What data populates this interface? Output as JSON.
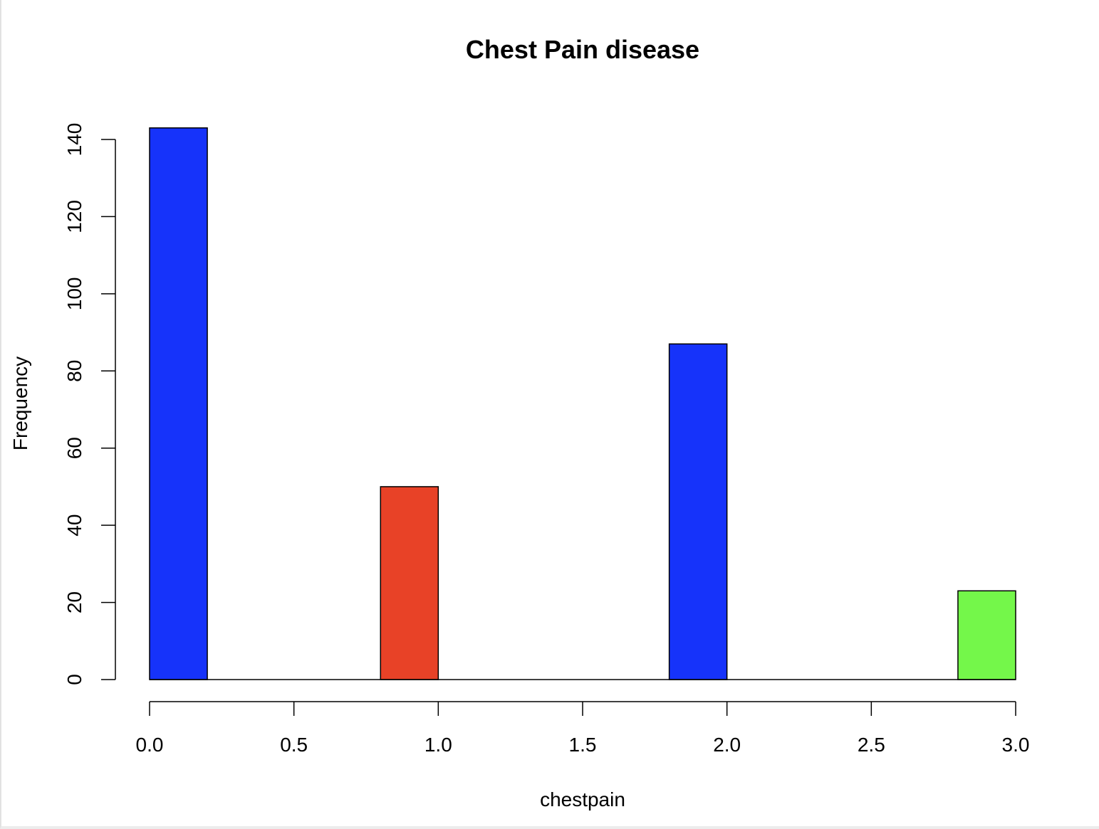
{
  "chart_data": {
    "type": "bar",
    "title": "Chest Pain disease",
    "xlabel": "chestpain",
    "ylabel": "Frequency",
    "xlim": [
      0,
      3
    ],
    "ylim": [
      0,
      140
    ],
    "grid": false,
    "bins": [
      {
        "x0": 0.0,
        "x1": 0.2,
        "value": 143,
        "color": "#1633FA"
      },
      {
        "x0": 0.2,
        "x1": 0.4,
        "value": 0,
        "color": "#1633FA"
      },
      {
        "x0": 0.4,
        "x1": 0.6,
        "value": 0,
        "color": "#1633FA"
      },
      {
        "x0": 0.6,
        "x1": 0.8,
        "value": 0,
        "color": "#1633FA"
      },
      {
        "x0": 0.8,
        "x1": 1.0,
        "value": 50,
        "color": "#E84227"
      },
      {
        "x0": 1.0,
        "x1": 1.2,
        "value": 0,
        "color": "#1633FA"
      },
      {
        "x0": 1.2,
        "x1": 1.4,
        "value": 0,
        "color": "#1633FA"
      },
      {
        "x0": 1.4,
        "x1": 1.6,
        "value": 0,
        "color": "#1633FA"
      },
      {
        "x0": 1.6,
        "x1": 1.8,
        "value": 0,
        "color": "#1633FA"
      },
      {
        "x0": 1.8,
        "x1": 2.0,
        "value": 87,
        "color": "#1633FA"
      },
      {
        "x0": 2.0,
        "x1": 2.2,
        "value": 0,
        "color": "#1633FA"
      },
      {
        "x0": 2.2,
        "x1": 2.4,
        "value": 0,
        "color": "#1633FA"
      },
      {
        "x0": 2.4,
        "x1": 2.6,
        "value": 0,
        "color": "#1633FA"
      },
      {
        "x0": 2.6,
        "x1": 2.8,
        "value": 0,
        "color": "#1633FA"
      },
      {
        "x0": 2.8,
        "x1": 3.0,
        "value": 23,
        "color": "#74F74A"
      }
    ],
    "x_ticks": [
      {
        "value": 0.0,
        "label": "0.0"
      },
      {
        "value": 0.5,
        "label": "0.5"
      },
      {
        "value": 1.0,
        "label": "1.0"
      },
      {
        "value": 1.5,
        "label": "1.5"
      },
      {
        "value": 2.0,
        "label": "2.0"
      },
      {
        "value": 2.5,
        "label": "2.5"
      },
      {
        "value": 3.0,
        "label": "3.0"
      }
    ],
    "y_ticks": [
      {
        "value": 0,
        "label": "0"
      },
      {
        "value": 20,
        "label": "20"
      },
      {
        "value": 40,
        "label": "40"
      },
      {
        "value": 60,
        "label": "60"
      },
      {
        "value": 80,
        "label": "80"
      },
      {
        "value": 100,
        "label": "100"
      },
      {
        "value": 120,
        "label": "120"
      },
      {
        "value": 140,
        "label": "140"
      }
    ]
  }
}
